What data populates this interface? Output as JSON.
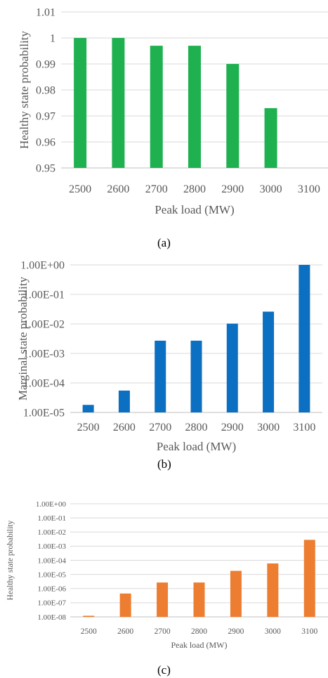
{
  "chart_data": [
    {
      "type": "bar",
      "categories": [
        "2500",
        "2600",
        "2700",
        "2800",
        "2900",
        "3000",
        "3100"
      ],
      "values": [
        1.0,
        1.0,
        0.997,
        0.997,
        0.99,
        0.973,
        null
      ],
      "ylabel": "Healthy state probability",
      "xlabel": "Peak load (MW)",
      "ylim": [
        0.95,
        1.01
      ],
      "yticks": [
        "0.95",
        "0.96",
        "0.97",
        "0.98",
        "0.99",
        "1",
        "1.01"
      ],
      "scale": "linear",
      "grid": true,
      "color": "#1fb050",
      "panel_label": "(a)"
    },
    {
      "type": "bar",
      "categories": [
        "2500",
        "2600",
        "2700",
        "2800",
        "2900",
        "3000",
        "3100"
      ],
      "values": [
        1.8e-05,
        5.5e-05,
        0.0027,
        0.0027,
        0.0102,
        0.026,
        1.0
      ],
      "ylabel": "Marginal state probability",
      "xlabel": "Peak load (MW)",
      "ylim": [
        1e-05,
        1
      ],
      "yticks": [
        "1.00E-05",
        "1.00E-04",
        "1.00E-03",
        "1.00E-02",
        "1.00E-01",
        "1.00E+00"
      ],
      "scale": "log",
      "grid": true,
      "color": "#0b6fc2",
      "panel_label": "(b)"
    },
    {
      "type": "bar",
      "categories": [
        "2500",
        "2600",
        "2700",
        "2800",
        "2900",
        "3000",
        "3100"
      ],
      "values": [
        1.2e-08,
        4.5e-07,
        2.7e-06,
        2.7e-06,
        1.8e-05,
        6e-05,
        0.0028
      ],
      "ylabel": "Healthy state probability",
      "xlabel": "Peak load (MW)",
      "ylim": [
        1e-08,
        1
      ],
      "yticks": [
        "1.00E-08",
        "1.00E-07",
        "1.00E-06",
        "1.00E-05",
        "1.00E-04",
        "1.00E-03",
        "1.00E-02",
        "1.00E-01",
        "1.00E+00"
      ],
      "scale": "log",
      "grid": true,
      "color": "#ed7d31",
      "panel_label": "(c)"
    }
  ]
}
